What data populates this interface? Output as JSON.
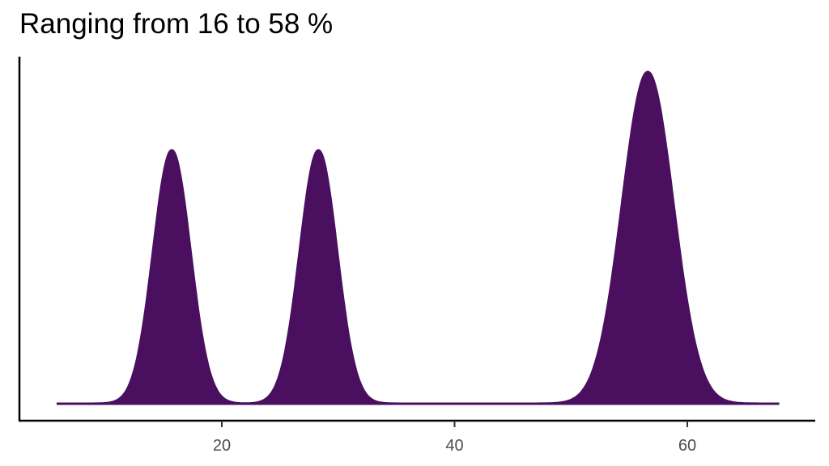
{
  "title": "Ranging from 16 to 58 %",
  "colors": {
    "fill": "#4A0F5E",
    "axis": "#000000",
    "tick_text": "#4d4d4d"
  },
  "chart_data": {
    "type": "area",
    "subtype": "density",
    "title": "Ranging from 16 to 58 %",
    "xlabel": "",
    "ylabel": "",
    "xlim": [
      3,
      71
    ],
    "x_ticks": [
      20,
      40,
      60
    ],
    "y_ticks": [],
    "grid": false,
    "legend": null,
    "x_range": [
      5.8,
      67.9
    ],
    "peaks": [
      {
        "center": 15.7,
        "sd": 1.6,
        "relative_height": 0.764
      },
      {
        "center": 28.3,
        "sd": 1.6,
        "relative_height": 0.764
      },
      {
        "center": 56.6,
        "sd": 2.2,
        "relative_height": 1.0
      }
    ]
  }
}
